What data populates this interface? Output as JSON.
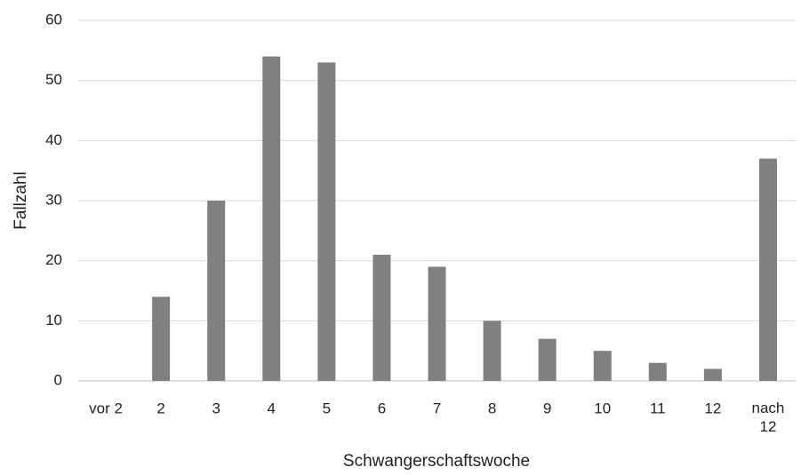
{
  "chart_data": {
    "type": "bar",
    "categories": [
      "vor 2",
      "2",
      "3",
      "4",
      "5",
      "6",
      "7",
      "8",
      "9",
      "10",
      "11",
      "12",
      "nach 12"
    ],
    "values": [
      0,
      14,
      30,
      54,
      53,
      21,
      19,
      10,
      7,
      5,
      3,
      2,
      37
    ],
    "color": "#808080",
    "ylim": [
      0,
      60
    ],
    "yticks": [
      0,
      10,
      20,
      30,
      40,
      50,
      60
    ],
    "grid": true,
    "x_label": "Schwangerschaftswoche",
    "y_label": "Fallzahl"
  }
}
